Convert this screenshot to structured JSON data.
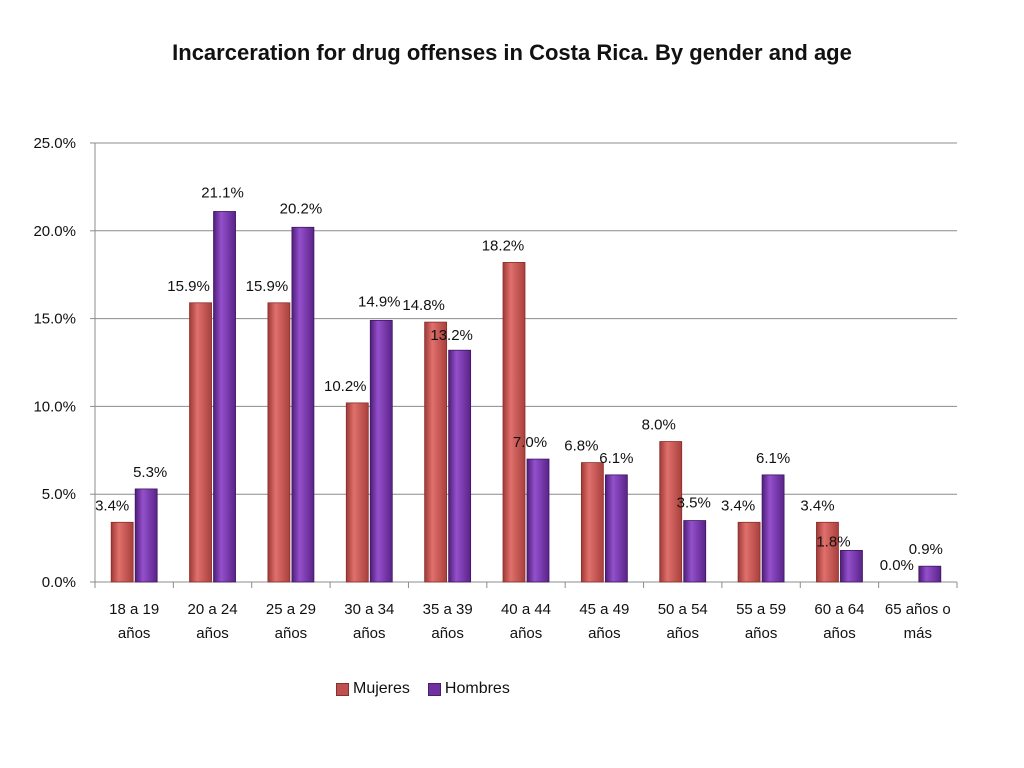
{
  "chart_data": {
    "type": "bar",
    "title": "Incarceration for drug offenses in Costa Rica. By gender and age",
    "xlabel": "",
    "ylabel": "",
    "ylim": [
      0,
      25
    ],
    "yticks": [
      "0.0%",
      "5.0%",
      "10.0%",
      "15.0%",
      "20.0%",
      "25.0%"
    ],
    "categories": [
      [
        "18 a 19",
        "años"
      ],
      [
        "20 a 24",
        "años"
      ],
      [
        "25 a 29",
        "años"
      ],
      [
        "30 a 34",
        "años"
      ],
      [
        "35 a 39",
        "años"
      ],
      [
        "40 a 44",
        "años"
      ],
      [
        "45 a 49",
        "años"
      ],
      [
        "50 a 54",
        "años"
      ],
      [
        "55 a 59",
        "años"
      ],
      [
        "60 a  64",
        "años"
      ],
      [
        "65 años o",
        "más"
      ]
    ],
    "series": [
      {
        "name": "Mujeres",
        "color": "#C0504D",
        "values": [
          3.4,
          15.9,
          15.9,
          10.2,
          14.8,
          18.2,
          6.8,
          8.0,
          3.4,
          3.4,
          0.0
        ],
        "labels": [
          "3.4%",
          "15.9%",
          "15.9%",
          "10.2%",
          "14.8%",
          "18.2%",
          "6.8%",
          "8.0%",
          "3.4%",
          "3.4%",
          "0.0%"
        ]
      },
      {
        "name": "Hombres",
        "color": "#7030A0",
        "values": [
          5.3,
          21.1,
          20.2,
          14.9,
          13.2,
          7.0,
          6.1,
          3.5,
          6.1,
          1.8,
          0.9
        ],
        "labels": [
          "5.3%",
          "21.1%",
          "20.2%",
          "14.9%",
          "13.2%",
          "7.0%",
          "6.1%",
          "3.5%",
          "6.1%",
          "1.8%",
          "0.9%"
        ]
      }
    ],
    "grid": true,
    "legend_position": "bottom"
  }
}
